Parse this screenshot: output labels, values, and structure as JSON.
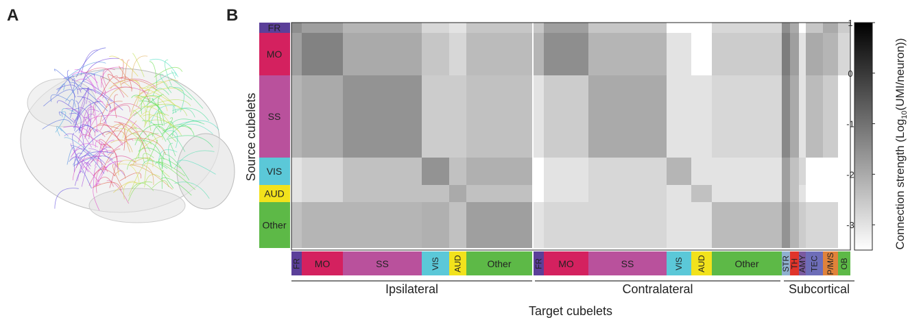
{
  "panel_labels": [
    "A",
    "B"
  ],
  "chart_data": {
    "type": "heatmap",
    "x_label": "Target cubelets",
    "y_label": "Source cubelets",
    "source_regions": [
      {
        "name": "FR",
        "color": "#5b3f99"
      },
      {
        "name": "MO",
        "color": "#d4215f"
      },
      {
        "name": "SS",
        "color": "#b9519c"
      },
      {
        "name": "VIS",
        "color": "#5bc8d8"
      },
      {
        "name": "AUD",
        "color": "#f2e21c"
      },
      {
        "name": "Other",
        "color": "#5db947"
      }
    ],
    "target_groups": [
      {
        "name": "Ipsilateral",
        "columns": [
          {
            "name": "FR",
            "color": "#5b3f99"
          },
          {
            "name": "MO",
            "color": "#d4215f"
          },
          {
            "name": "SS",
            "color": "#b9519c"
          },
          {
            "name": "VIS",
            "color": "#5bc8d8"
          },
          {
            "name": "AUD",
            "color": "#f2e21c"
          },
          {
            "name": "Other",
            "color": "#5db947"
          }
        ]
      },
      {
        "name": "Contralateral",
        "columns": [
          {
            "name": "FR",
            "color": "#5b3f99"
          },
          {
            "name": "MO",
            "color": "#d4215f"
          },
          {
            "name": "SS",
            "color": "#b9519c"
          },
          {
            "name": "VIS",
            "color": "#5bc8d8"
          },
          {
            "name": "AUD",
            "color": "#f2e21c"
          },
          {
            "name": "Other",
            "color": "#5db947"
          }
        ]
      },
      {
        "name": "Subcortical",
        "columns": [
          {
            "name": "STR",
            "color": "#8fb0cf"
          },
          {
            "name": "TH",
            "color": "#e0342a"
          },
          {
            "name": "AMY",
            "color": "#7a5aa0"
          },
          {
            "name": "TEC",
            "color": "#6d6db8"
          },
          {
            "name": "P/M/S",
            "color": "#e0823a"
          },
          {
            "name": "OB",
            "color": "#5db947"
          }
        ]
      }
    ],
    "values": [
      [
        -1.5,
        -1.8,
        -2.2,
        -2.8,
        -3,
        -2.5,
        -2.5,
        -1.8,
        -2.5,
        null,
        null,
        -2.8,
        -1.5,
        -2,
        null,
        -2.5,
        -2,
        -2.6
      ],
      [
        -1.8,
        -1.3,
        -2,
        -2.5,
        -2.8,
        -2.3,
        -2.2,
        -1.5,
        -2.2,
        -3,
        null,
        -2.6,
        -1.2,
        -1.8,
        -3,
        -2,
        -2.2,
        -2.8
      ],
      [
        -2.2,
        -2,
        -1.6,
        -2.6,
        -2.6,
        -2.4,
        -3,
        -2.6,
        -2,
        -3,
        -3,
        -2.8,
        -1.4,
        -2,
        -3,
        -2.3,
        -2.6,
        null
      ],
      [
        -3,
        -2.8,
        -2.4,
        -1.6,
        -2.4,
        -2.1,
        null,
        -3,
        -2.8,
        -2.2,
        -3,
        -3,
        -1.8,
        -2.4,
        -2.8,
        null,
        null,
        null
      ],
      [
        -3,
        -2.8,
        -2.4,
        -2.4,
        -2,
        -2.4,
        null,
        -3,
        -2.8,
        -3,
        -2.4,
        -3,
        -1.8,
        -2.4,
        -3,
        null,
        null,
        null
      ],
      [
        -2.4,
        -2.2,
        -2.2,
        -2.1,
        -2.4,
        -1.8,
        -3,
        -2.8,
        -2.8,
        -3,
        -3,
        -2.3,
        -1.6,
        -2.2,
        -2.6,
        -2.8,
        -2.8,
        null
      ]
    ],
    "colorbar": {
      "label_parts": [
        "Connection strength (Log",
        "10",
        "(UMI/neuron))"
      ],
      "zlim": [
        -3.5,
        1
      ],
      "zticks": [
        1,
        0,
        -1,
        -2,
        -3
      ]
    }
  }
}
